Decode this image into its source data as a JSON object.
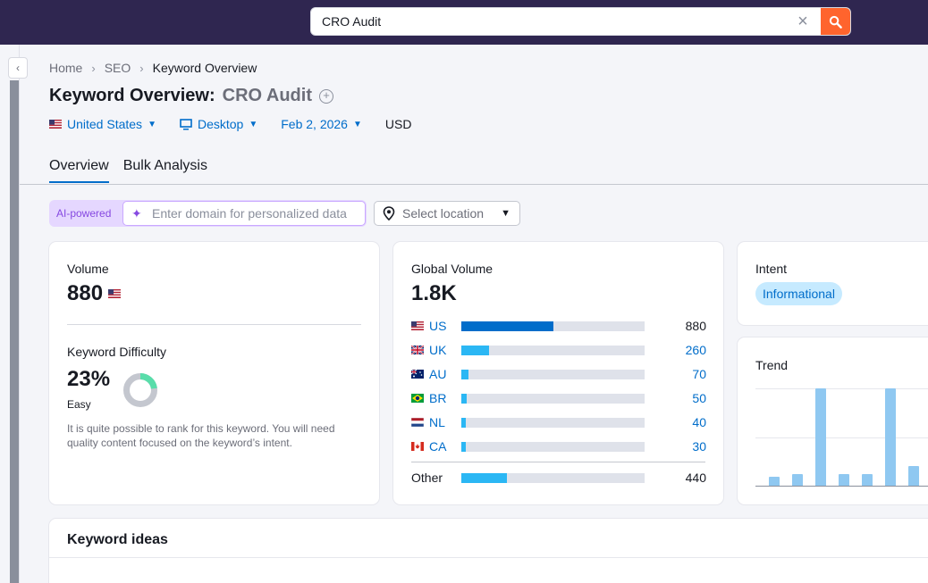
{
  "search": {
    "value": "CRO Audit"
  },
  "breadcrumb": {
    "items": [
      "Home",
      "SEO",
      "Keyword Overview"
    ]
  },
  "page": {
    "title": "Keyword Overview:",
    "keyword": "CRO Audit"
  },
  "filters": {
    "country": "United States",
    "device": "Desktop",
    "date": "Feb 2, 2026",
    "currency": "USD"
  },
  "tabs": [
    "Overview",
    "Bulk Analysis"
  ],
  "ai": {
    "label": "AI-powered",
    "placeholder": "Enter domain for personalized data"
  },
  "location": {
    "label": "Select location"
  },
  "volume": {
    "label": "Volume",
    "value": "880"
  },
  "difficulty": {
    "label": "Keyword Difficulty",
    "value": "23%",
    "percent": 23,
    "level": "Easy",
    "description": "It is quite possible to rank for this keyword. You will need quality content focused on the keyword’s intent."
  },
  "global_volume": {
    "label": "Global Volume",
    "total": "1.8K",
    "countries": [
      {
        "code": "US",
        "value": "880",
        "ratio": 0.5
      },
      {
        "code": "UK",
        "value": "260",
        "ratio": 0.15
      },
      {
        "code": "AU",
        "value": "70",
        "ratio": 0.04
      },
      {
        "code": "BR",
        "value": "50",
        "ratio": 0.03
      },
      {
        "code": "NL",
        "value": "40",
        "ratio": 0.02
      },
      {
        "code": "CA",
        "value": "30",
        "ratio": 0.015
      }
    ],
    "other": {
      "label": "Other",
      "value": "440",
      "ratio": 0.25
    }
  },
  "intent": {
    "label": "Intent",
    "value": "Informational"
  },
  "trend": {
    "label": "Trend",
    "values": [
      0.09,
      0.12,
      1.0,
      0.12,
      0.12,
      1.0,
      0.2
    ]
  },
  "keyword_ideas": {
    "title": "Keyword ideas"
  },
  "colors": {
    "topbar": "#2f2650",
    "accent": "#006dca",
    "search_button": "#ff642d",
    "bar_dark": "#006dca",
    "bar_light": "#2bb7f4"
  }
}
